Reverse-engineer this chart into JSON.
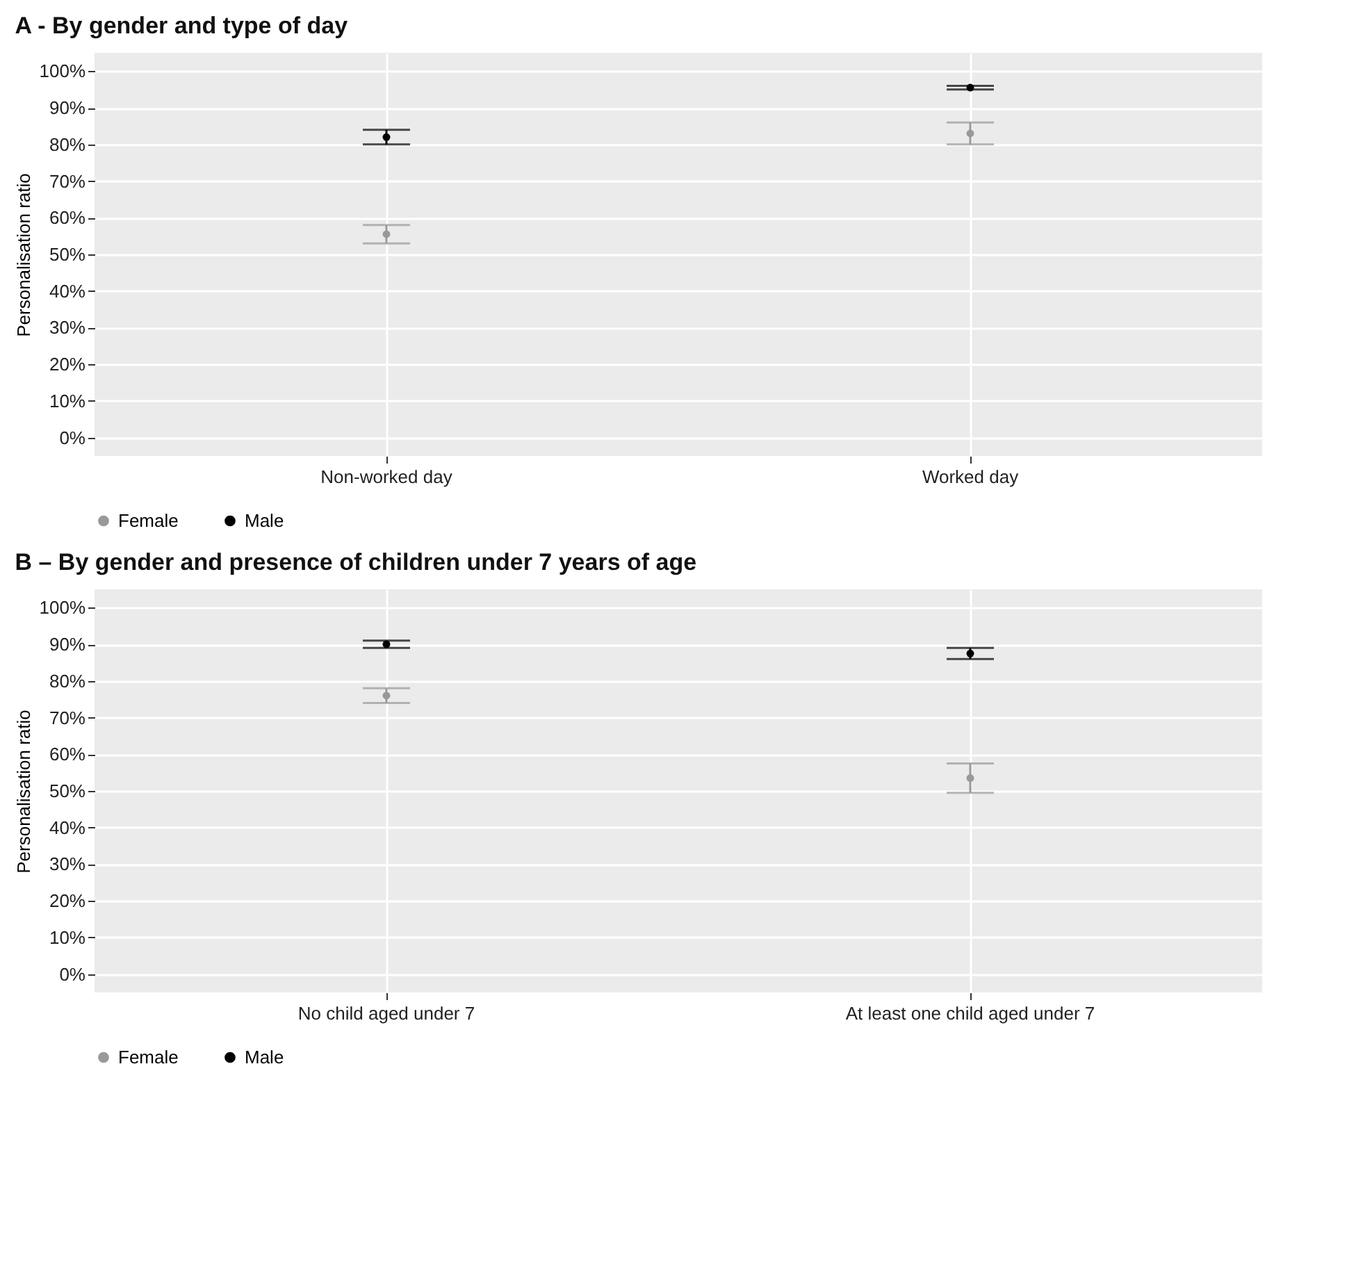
{
  "chart_data": [
    {
      "type": "scatter",
      "title": "A - By gender and type of day",
      "ylabel": "Personalisation ratio",
      "categories": [
        "Non-worked day",
        "Worked day"
      ],
      "series": [
        {
          "name": "Female",
          "color": "#999999",
          "values": [
            55.5,
            83
          ],
          "errors": [
            [
              53,
              58
            ],
            [
              80,
              86
            ]
          ]
        },
        {
          "name": "Male",
          "color": "#000000",
          "values": [
            82,
            95.5
          ],
          "errors": [
            [
              80,
              84
            ],
            [
              95,
              96
            ]
          ]
        }
      ],
      "ylim": [
        -5,
        105
      ],
      "yticks": [
        {
          "value": 0,
          "label": "0%"
        },
        {
          "value": 10,
          "label": "10%"
        },
        {
          "value": 20,
          "label": "20%"
        },
        {
          "value": 30,
          "label": "30%"
        },
        {
          "value": 40,
          "label": "40%"
        },
        {
          "value": 50,
          "label": "50%"
        },
        {
          "value": 60,
          "label": "60%"
        },
        {
          "value": 70,
          "label": "70%"
        },
        {
          "value": 80,
          "label": "80%"
        },
        {
          "value": 90,
          "label": "90%"
        },
        {
          "value": 100,
          "label": "100%"
        }
      ],
      "grid": true,
      "legend": "bottom",
      "marker": "circle"
    },
    {
      "type": "scatter",
      "title": "B – By gender and presence of children under 7 years of age",
      "ylabel": "Personalisation ratio",
      "categories": [
        "No child aged under 7",
        "At least one child aged under 7"
      ],
      "series": [
        {
          "name": "Female",
          "color": "#999999",
          "values": [
            76,
            53.5
          ],
          "errors": [
            [
              74,
              78
            ],
            [
              49.5,
              57.5
            ]
          ]
        },
        {
          "name": "Male",
          "color": "#000000",
          "values": [
            90,
            87.5
          ],
          "errors": [
            [
              89,
              91
            ],
            [
              86,
              89
            ]
          ]
        }
      ],
      "ylim": [
        -5,
        105
      ],
      "yticks": [
        {
          "value": 0,
          "label": "0%"
        },
        {
          "value": 10,
          "label": "10%"
        },
        {
          "value": 20,
          "label": "20%"
        },
        {
          "value": 30,
          "label": "30%"
        },
        {
          "value": 40,
          "label": "40%"
        },
        {
          "value": 50,
          "label": "50%"
        },
        {
          "value": 60,
          "label": "60%"
        },
        {
          "value": 70,
          "label": "70%"
        },
        {
          "value": 80,
          "label": "80%"
        },
        {
          "value": 90,
          "label": "90%"
        },
        {
          "value": 100,
          "label": "100%"
        }
      ],
      "grid": true,
      "legend": "bottom",
      "marker": "circle"
    }
  ]
}
